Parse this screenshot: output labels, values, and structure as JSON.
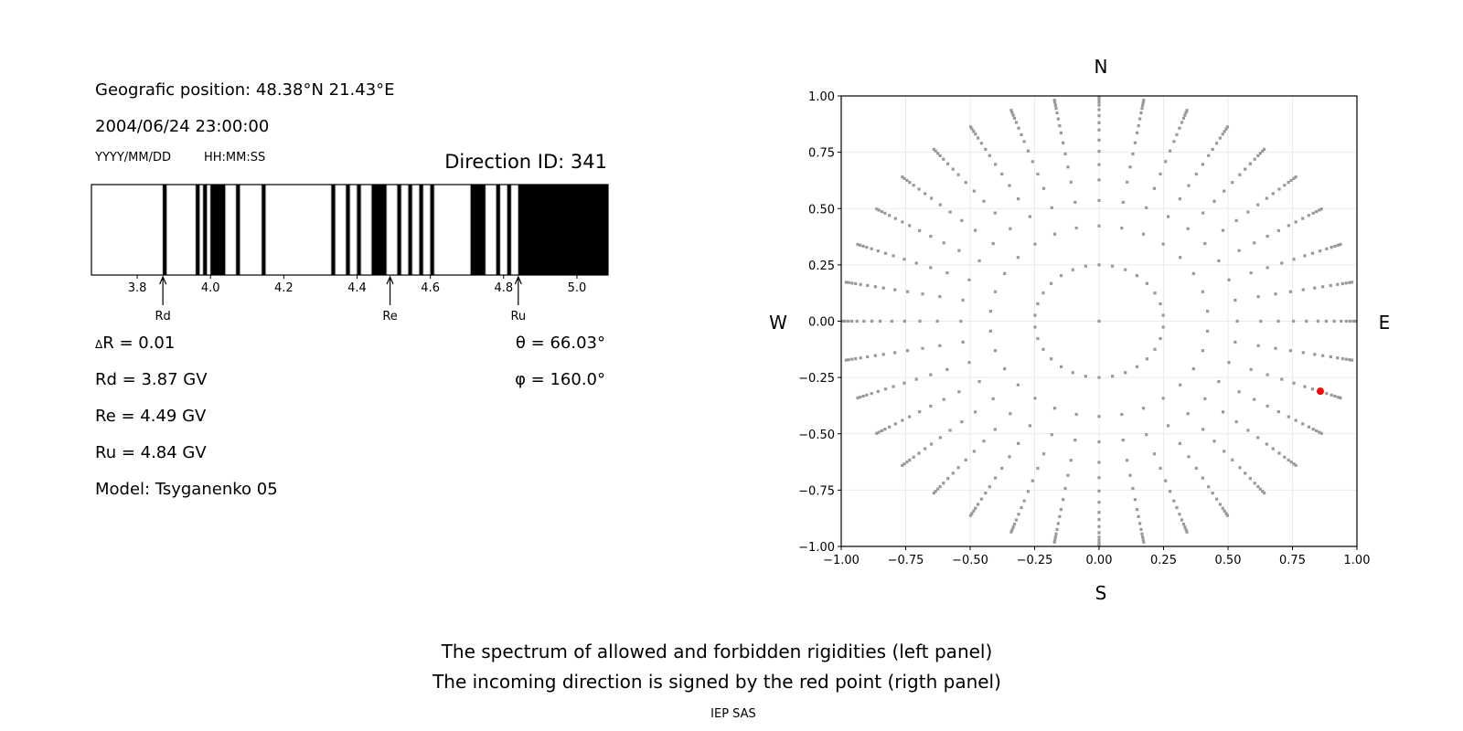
{
  "left_panel": {
    "position": "Geografic position: 48.38°N 21.43°E",
    "datetime": "2004/06/24 23:00:00",
    "date_format": "YYYY/MM/DD",
    "time_format": "HH:MM:SS",
    "direction_id": "Direction ID: 341",
    "delta_r": "R = 0.01",
    "delta_symbol": "Δ",
    "rd": "Rd = 3.87 GV",
    "re": "Re = 4.49 GV",
    "ru": "Ru = 4.84 GV",
    "model": "Model: Tsyganenko 05",
    "theta": "θ = 66.03°",
    "phi": "φ = 160.0°"
  },
  "right_panel": {
    "north": "N",
    "south": "S",
    "west": "W",
    "east": "E"
  },
  "caption": {
    "line1": "The spectrum of allowed and forbidden rigidities (left panel)",
    "line2": "The incoming direction is signed by the red point (rigth panel)",
    "credit": "IEP SAS"
  },
  "chart_data": [
    {
      "type": "bar",
      "xlim": [
        3.675,
        5.085
      ],
      "xticks": [
        "3.8",
        "4.0",
        "4.2",
        "4.4",
        "4.6",
        "4.8",
        "5.0"
      ],
      "bin_width": 0.01,
      "forbidden_color": "#000000",
      "allowed_color": "#ffffff",
      "forbidden_intervals": [
        [
          3.87,
          3.88
        ],
        [
          3.96,
          3.97
        ],
        [
          3.98,
          3.99
        ],
        [
          4.0,
          4.04
        ],
        [
          4.07,
          4.08
        ],
        [
          4.14,
          4.15
        ],
        [
          4.33,
          4.34
        ],
        [
          4.37,
          4.38
        ],
        [
          4.4,
          4.41
        ],
        [
          4.44,
          4.48
        ],
        [
          4.51,
          4.52
        ],
        [
          4.54,
          4.55
        ],
        [
          4.57,
          4.58
        ],
        [
          4.6,
          4.61
        ],
        [
          4.71,
          4.75
        ],
        [
          4.78,
          4.79
        ],
        [
          4.81,
          4.82
        ],
        [
          4.84,
          5.085
        ]
      ],
      "markers": [
        {
          "label": "Rd",
          "value": 3.87
        },
        {
          "label": "Re",
          "value": 4.49
        },
        {
          "label": "Ru",
          "value": 4.84
        }
      ]
    },
    {
      "type": "scatter",
      "xlim": [
        -1,
        1
      ],
      "ylim": [
        -1,
        1
      ],
      "xticks": [
        "−1.00",
        "−0.75",
        "−0.50",
        "−0.25",
        "0.00",
        "0.25",
        "0.50",
        "0.75",
        "1.00"
      ],
      "yticks": [
        "−1.00",
        "−0.75",
        "−0.50",
        "−0.25",
        "0.00",
        "0.25",
        "0.50",
        "0.75",
        "1.00"
      ],
      "grid": true,
      "point_color": "#999999",
      "highlight_color": "#ff0000",
      "center_point": [
        0,
        0
      ],
      "rings": [
        {
          "r": 0.25,
          "n": 30
        },
        {
          "r": 0.423,
          "n": 30
        },
        {
          "r": 0.536,
          "n": 36
        },
        {
          "r": 0.627,
          "n": 36
        },
        {
          "r": 0.695,
          "n": 36
        },
        {
          "r": 0.754,
          "n": 36
        },
        {
          "r": 0.804,
          "n": 36
        },
        {
          "r": 0.849,
          "n": 36
        },
        {
          "r": 0.881,
          "n": 36
        },
        {
          "r": 0.912,
          "n": 36
        },
        {
          "r": 0.939,
          "n": 36
        },
        {
          "r": 0.959,
          "n": 36
        },
        {
          "r": 0.973,
          "n": 36
        },
        {
          "r": 0.986,
          "n": 36
        },
        {
          "r": 0.996,
          "n": 36
        }
      ],
      "highlight_point": [
        0.858,
        -0.311
      ]
    }
  ]
}
